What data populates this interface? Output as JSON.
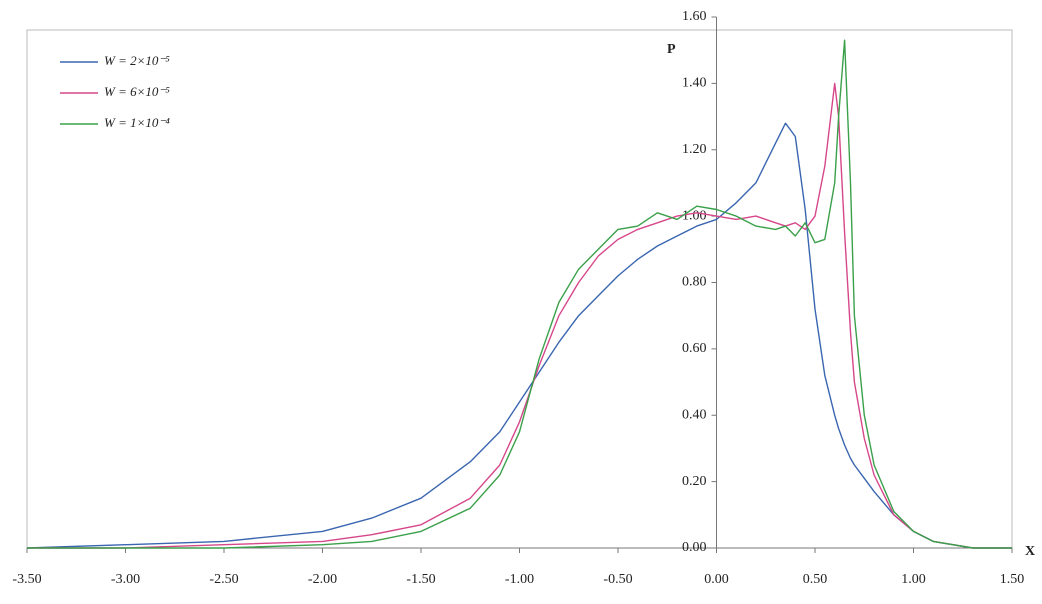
{
  "chart_data": {
    "type": "line",
    "xlabel": "X",
    "ylabel": "P",
    "x": [
      -3.5,
      -3.0,
      -2.5,
      -2.0,
      -1.75,
      -1.5,
      -1.25,
      -1.1,
      -1.0,
      -0.9,
      -0.8,
      -0.7,
      -0.6,
      -0.5,
      -0.4,
      -0.3,
      -0.2,
      -0.1,
      0.0,
      0.1,
      0.2,
      0.3,
      0.35,
      0.4,
      0.45,
      0.5,
      0.55,
      0.6,
      0.62,
      0.65,
      0.68,
      0.7,
      0.75,
      0.8,
      0.9,
      1.0,
      1.1,
      1.2,
      1.3,
      1.5
    ],
    "series": [
      {
        "name": "W = 2×10⁻⁵",
        "color": "#3a66b0",
        "values": [
          0.0,
          0.01,
          0.02,
          0.05,
          0.09,
          0.15,
          0.26,
          0.35,
          0.44,
          0.53,
          0.62,
          0.7,
          0.76,
          0.82,
          0.87,
          0.91,
          0.94,
          0.97,
          0.99,
          1.04,
          1.1,
          1.22,
          1.28,
          1.24,
          1.02,
          0.72,
          0.52,
          0.4,
          0.36,
          0.31,
          0.27,
          0.25,
          0.21,
          0.17,
          0.1,
          0.05,
          0.02,
          0.01,
          0.0,
          0.0
        ]
      },
      {
        "name": "W = 6×10⁻⁵",
        "color": "#d6478a",
        "values": [
          0.0,
          0.0,
          0.01,
          0.02,
          0.04,
          0.07,
          0.15,
          0.25,
          0.38,
          0.55,
          0.7,
          0.8,
          0.88,
          0.93,
          0.96,
          0.98,
          1.0,
          1.01,
          1.0,
          0.99,
          1.0,
          0.98,
          0.97,
          0.98,
          0.96,
          1.0,
          1.15,
          1.4,
          1.3,
          0.95,
          0.65,
          0.5,
          0.33,
          0.22,
          0.1,
          0.05,
          0.02,
          0.01,
          0.0,
          0.0
        ]
      },
      {
        "name": "W = 1×10⁻⁴",
        "color": "#3aa04a",
        "values": [
          0.0,
          0.0,
          0.0,
          0.01,
          0.02,
          0.05,
          0.12,
          0.22,
          0.35,
          0.57,
          0.74,
          0.84,
          0.9,
          0.96,
          0.97,
          1.01,
          0.99,
          1.03,
          1.02,
          1.0,
          0.97,
          0.96,
          0.97,
          0.94,
          0.98,
          0.92,
          0.93,
          1.1,
          1.3,
          1.53,
          1.1,
          0.7,
          0.4,
          0.25,
          0.11,
          0.05,
          0.02,
          0.01,
          0.0,
          0.0
        ]
      }
    ],
    "xlim": [
      -3.5,
      1.5
    ],
    "xticks": [
      {
        "value": -3.5,
        "label": "-3.50"
      },
      {
        "value": -3.0,
        "label": "-3.00"
      },
      {
        "value": -2.5,
        "label": "-2.50"
      },
      {
        "value": -2.0,
        "label": "-2.00"
      },
      {
        "value": -1.5,
        "label": "-1.50"
      },
      {
        "value": -1.0,
        "label": "-1.00"
      },
      {
        "value": -0.5,
        "label": "-0.50"
      },
      {
        "value": 0,
        "label": "0.00"
      },
      {
        "value": 0.5,
        "label": "0.50"
      },
      {
        "value": 1.0,
        "label": "1.00"
      },
      {
        "value": 1.5,
        "label": "1.50"
      }
    ],
    "ylim": [
      0,
      1.6
    ],
    "yticks": [
      {
        "value": 0,
        "label": "0.00"
      },
      {
        "value": 0.2,
        "label": "0.20"
      },
      {
        "value": 0.4,
        "label": "0.40"
      },
      {
        "value": 0.6,
        "label": "0.60"
      },
      {
        "value": 0.8,
        "label": "0.80"
      },
      {
        "value": 1.0,
        "label": "1.00"
      },
      {
        "value": 1.2,
        "label": "1.20"
      },
      {
        "value": 1.4,
        "label": "1.40"
      },
      {
        "value": 1.6,
        "label": "1.60"
      }
    ],
    "legend": "upper left",
    "grid": false
  }
}
